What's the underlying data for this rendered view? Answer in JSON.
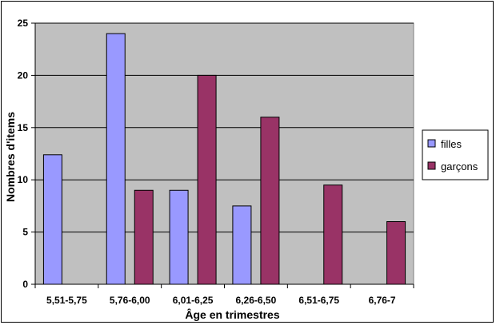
{
  "chart_data": {
    "type": "bar",
    "categories": [
      "5,51-5,75",
      "5,76-6,00",
      "6,01-6,25",
      "6,26-6,50",
      "6,51-6,75",
      "6,76-7"
    ],
    "series": [
      {
        "name": "filles",
        "values": [
          12.4,
          24,
          9,
          7.5,
          0,
          0
        ],
        "color": "#9999ff"
      },
      {
        "name": "garçons",
        "values": [
          0,
          9,
          20,
          16,
          9.5,
          6
        ],
        "color": "#993366"
      }
    ],
    "title": "",
    "xlabel": "Âge en trimestres",
    "ylabel": "Nombres d'items",
    "ylim": [
      0,
      25
    ],
    "yticks": [
      "0",
      "5",
      "10",
      "15",
      "20",
      "25"
    ],
    "grid": true,
    "plot_background": "#c0c0c0",
    "legend_position": "right"
  }
}
